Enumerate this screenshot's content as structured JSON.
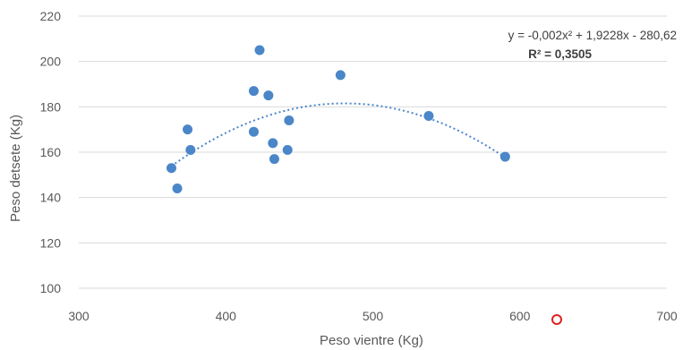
{
  "chart_data": {
    "type": "scatter",
    "title": "",
    "xlabel": "Peso vientre (Kg)",
    "ylabel": "Peso detsete (Kg)",
    "xlim": [
      300,
      700
    ],
    "ylim": [
      100,
      220
    ],
    "xticks": [
      300,
      400,
      500,
      600,
      700
    ],
    "yticks": [
      100,
      120,
      140,
      160,
      180,
      200,
      220
    ],
    "grid": "horizontal",
    "legend": "none",
    "point_color": "#4a86c8",
    "trendline_color": "#4a86c8",
    "series": [
      {
        "points": [
          {
            "x": 363,
            "y": 153
          },
          {
            "x": 367,
            "y": 144
          },
          {
            "x": 374,
            "y": 170
          },
          {
            "x": 376,
            "y": 161
          },
          {
            "x": 419,
            "y": 187
          },
          {
            "x": 419,
            "y": 169
          },
          {
            "x": 423,
            "y": 205
          },
          {
            "x": 429,
            "y": 185
          },
          {
            "x": 432,
            "y": 164
          },
          {
            "x": 433,
            "y": 157
          },
          {
            "x": 442,
            "y": 161
          },
          {
            "x": 443,
            "y": 174
          },
          {
            "x": 478,
            "y": 194
          },
          {
            "x": 538,
            "y": 176
          },
          {
            "x": 590,
            "y": 158
          }
        ]
      }
    ],
    "trendline": {
      "type": "polynomial",
      "coefficients": [
        -0.002,
        1.9228,
        -280.62
      ],
      "x_range": [
        363,
        590
      ],
      "equation_text": "y = -0,002x² + 1,9228x - 280,62",
      "r2_text": "R² = 0,3505"
    }
  }
}
